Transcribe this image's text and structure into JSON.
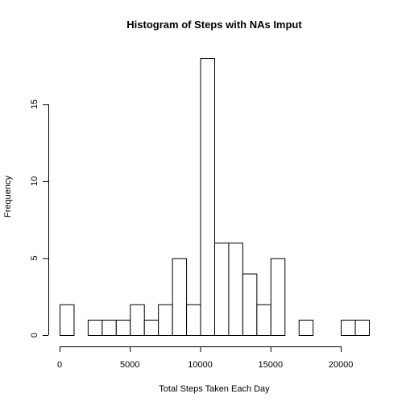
{
  "chart_data": {
    "type": "bar",
    "title": "Histogram of Steps with NAs Imput",
    "xlabel": "Total Steps Taken Each Day",
    "ylabel": "Frequency",
    "bin_width": 1000,
    "bin_start": 0,
    "values": [
      2,
      0,
      1,
      1,
      1,
      2,
      1,
      2,
      5,
      2,
      18,
      6,
      6,
      4,
      2,
      5,
      0,
      1,
      0,
      0,
      1,
      1
    ],
    "xlim": [
      0,
      22000
    ],
    "ylim": [
      0,
      18
    ],
    "x_ticks": [
      0,
      5000,
      10000,
      15000,
      20000
    ],
    "x_tick_labels": [
      "0",
      "5000",
      "10000",
      "15000",
      "20000"
    ],
    "y_ticks": [
      0,
      5,
      10,
      15
    ],
    "y_tick_labels": [
      "0",
      "5",
      "10",
      "15"
    ],
    "colors": {
      "bar_fill": "#ffffff",
      "bar_stroke": "#000000"
    },
    "grid": false,
    "legend": "none"
  }
}
